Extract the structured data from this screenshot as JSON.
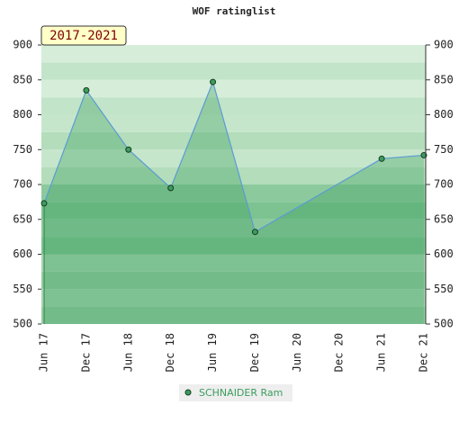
{
  "chart_data": {
    "type": "line",
    "title": "WOF ratinglist",
    "annotation": "2017-2021",
    "categories": [
      "Jun 17",
      "Dec 17",
      "Jun 18",
      "Dec 18",
      "Jun 19",
      "Dec 19",
      "Jun 20",
      "Dec 20",
      "Jun 21",
      "Dec 21"
    ],
    "series": [
      {
        "name": "SCHNAIDER Ram",
        "color": "#3a9d5d",
        "x": [
          "Jun 17",
          "Dec 17",
          "Jun 18",
          "Dec 18",
          "Jun 19",
          "Dec 19",
          "Jun 21",
          "Dec 21"
        ],
        "values": [
          673,
          835,
          750,
          695,
          847,
          632,
          737,
          742
        ]
      }
    ],
    "ylim": [
      500,
      900
    ],
    "yticks": [
      500,
      550,
      600,
      650,
      700,
      750,
      800,
      850,
      900
    ],
    "y2lim": [
      500,
      900
    ],
    "y2ticks": [
      500,
      550,
      600,
      650,
      700,
      750,
      800,
      850,
      900
    ]
  }
}
